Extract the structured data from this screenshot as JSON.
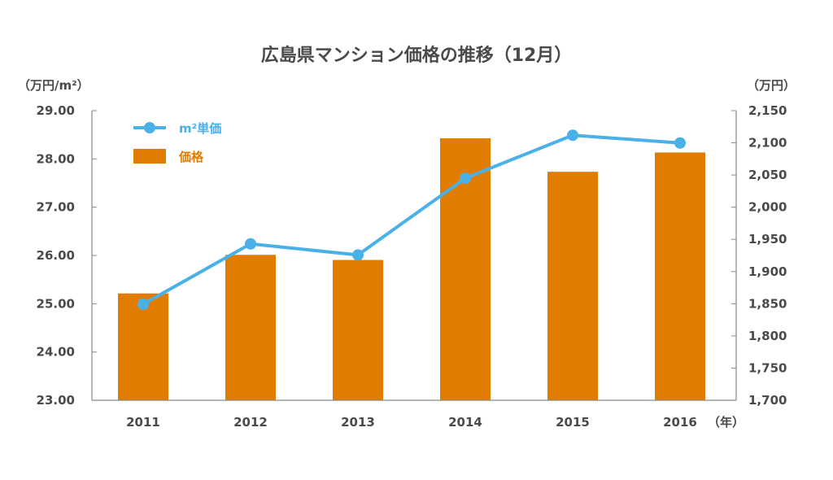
{
  "title": "広島県マンション価格の推移（12月）",
  "left_unit": "（万円/m²）",
  "right_unit": "（万円）",
  "x_unit": "（年）",
  "colors": {
    "bar": "#E07D00",
    "line": "#4AB0E8",
    "axis": "#888888",
    "text": "#4a4a4a"
  },
  "chart_data": {
    "type": "bar",
    "title": "広島県マンション価格の推移（12月）",
    "categories": [
      "2011",
      "2012",
      "2013",
      "2014",
      "2015",
      "2016"
    ],
    "left_axis": {
      "range": [
        23,
        29
      ],
      "ticks": [
        "23.00",
        "24.00",
        "25.00",
        "26.00",
        "27.00",
        "28.00",
        "29.00"
      ],
      "unit": "（万円/m²）"
    },
    "right_axis": {
      "range": [
        1700,
        2150
      ],
      "ticks": [
        "1,700",
        "1,750",
        "1,800",
        "1,850",
        "1,900",
        "1,950",
        "2,000",
        "2,050",
        "2,100",
        "2,150"
      ],
      "unit": "（万円）"
    },
    "series": [
      {
        "name": "価格",
        "type": "bar",
        "axis": "right",
        "values": [
          1866,
          1926,
          1918,
          2107,
          2055,
          2085
        ]
      },
      {
        "name": "m²単価",
        "type": "line",
        "axis": "left",
        "values": [
          24.99,
          26.24,
          26.01,
          27.6,
          28.49,
          28.33
        ]
      }
    ],
    "legend_position": "top-left",
    "grid": false
  }
}
